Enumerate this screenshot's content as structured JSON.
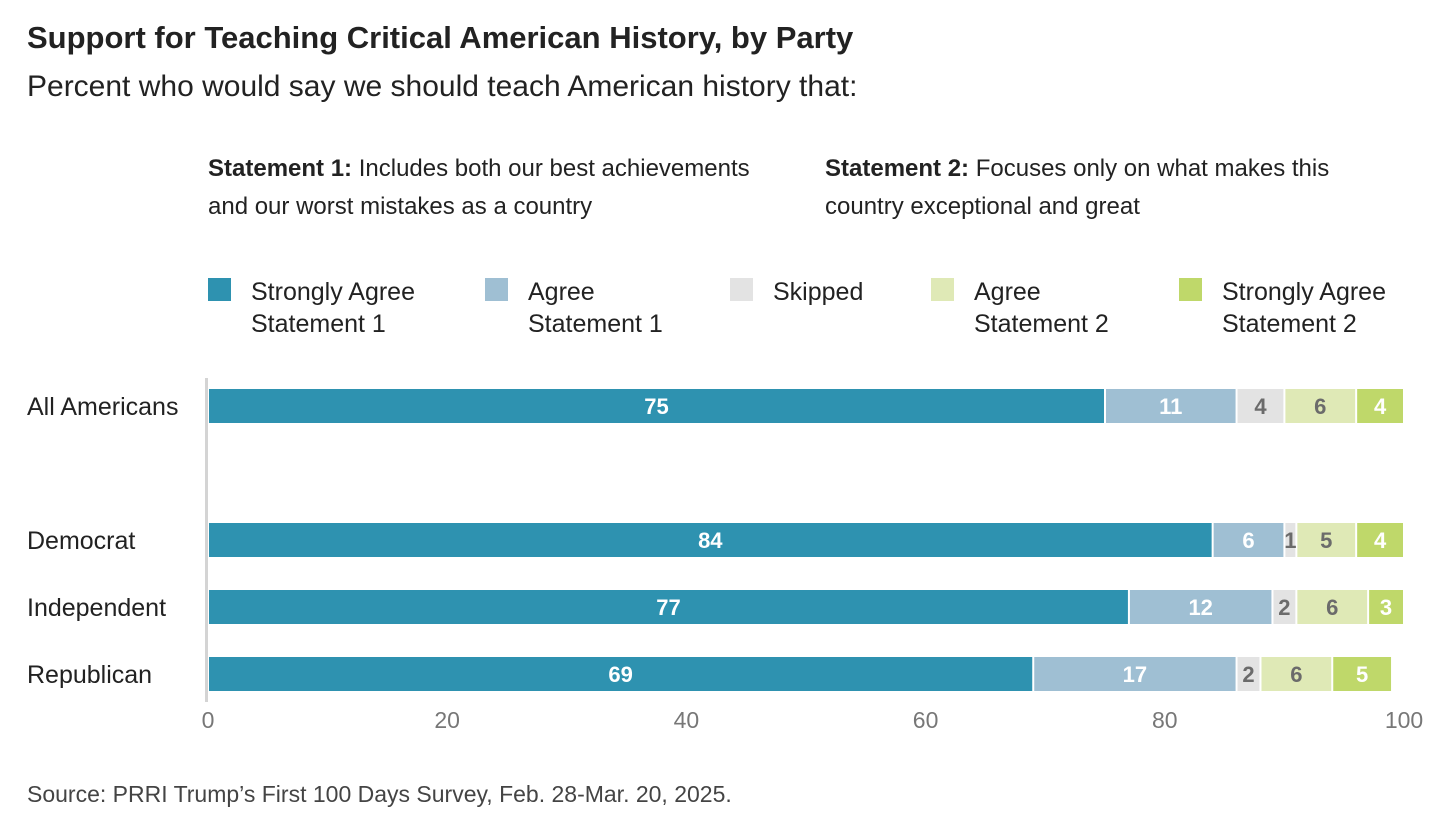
{
  "title": "Support for Teaching Critical American History, by Party",
  "subtitle": "Percent who would say we should teach American history that:",
  "statements": [
    {
      "label": "Statement 1:",
      "text": "Includes both our best achievements",
      "text2": "and our worst mistakes as a country"
    },
    {
      "label": "Statement 2:",
      "text": "Focuses only on what makes this",
      "text2": "country exceptional and great"
    }
  ],
  "legend": [
    {
      "line1": "Strongly Agree",
      "line2": "Statement 1",
      "color": "#2e92b0"
    },
    {
      "line1": "Agree",
      "line2": "Statement 1",
      "color": "#9fbfd3"
    },
    {
      "line1": "Skipped",
      "line2": "",
      "color": "#e3e3e3"
    },
    {
      "line1": "Agree",
      "line2": "Statement 2",
      "color": "#dfe9b6"
    },
    {
      "line1": "Strongly Agree",
      "line2": "Statement 2",
      "color": "#bfd86a"
    }
  ],
  "chart_data": {
    "type": "bar",
    "orientation": "horizontal",
    "stacked": true,
    "categories": [
      "All Americans",
      "Democrat",
      "Independent",
      "Republican"
    ],
    "series": [
      {
        "name": "Strongly Agree Statement 1",
        "values": [
          75,
          84,
          77,
          69
        ],
        "color": "#2e92b0",
        "label_color": "#ffffff"
      },
      {
        "name": "Agree Statement 1",
        "values": [
          11,
          6,
          12,
          17
        ],
        "color": "#9fbfd3",
        "label_color": "#ffffff"
      },
      {
        "name": "Skipped",
        "values": [
          4,
          1,
          2,
          2
        ],
        "color": "#e3e3e3",
        "label_color": "#6b6b6b"
      },
      {
        "name": "Agree Statement 2",
        "values": [
          6,
          5,
          6,
          6
        ],
        "color": "#dfe9b6",
        "label_color": "#6b6b6b"
      },
      {
        "name": "Strongly Agree Statement 2",
        "values": [
          4,
          4,
          3,
          5
        ],
        "color": "#bfd86a",
        "label_color": "#ffffff"
      }
    ],
    "xlim": [
      0,
      100
    ],
    "xticks": [
      0,
      20,
      40,
      60,
      80,
      100
    ],
    "xlabel": "",
    "ylabel": "",
    "grid": false
  },
  "source": "Source: PRRI Trump’s First 100 Days Survey, Feb. 28-Mar. 20, 2025."
}
